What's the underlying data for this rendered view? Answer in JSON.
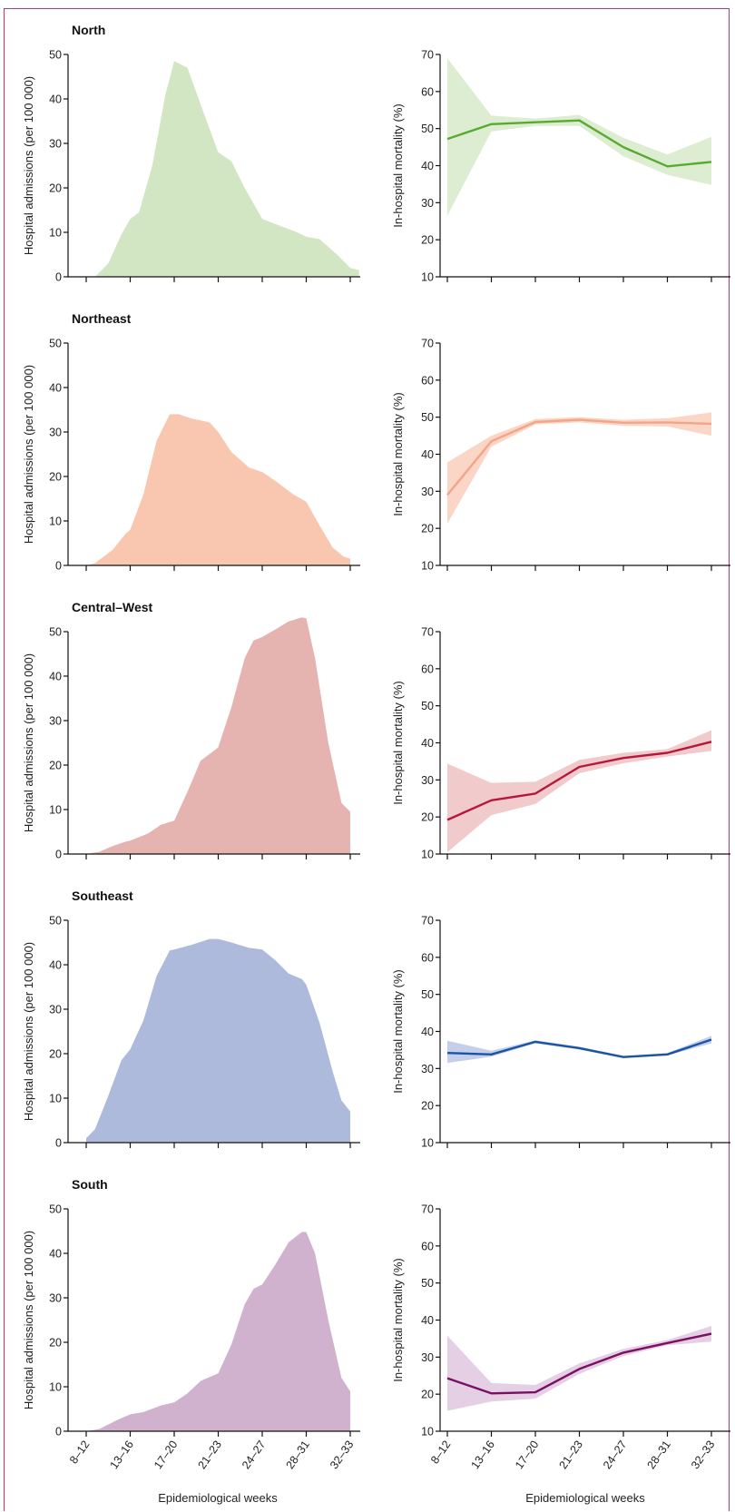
{
  "colors": {
    "north_area": "#d2e6c4",
    "north_line": "#5aaa32",
    "north_band": "#ddedd2",
    "northeast_area": "#f9c6af",
    "northeast_line": "#f2a588",
    "northeast_band": "#fbd6c6",
    "centralwest_area": "#e5b4b1",
    "centralwest_line": "#b5183d",
    "centralwest_band": "#f1cbcb",
    "southeast_area": "#adbadb",
    "southeast_line": "#1a55a4",
    "southeast_band": "#c5cfeb",
    "south_area": "#d0b2cf",
    "south_line": "#7b0f62",
    "south_band": "#e4cfe4",
    "frame": "#c2336f"
  },
  "x_axis_label": "Epidemiological weeks",
  "chart_data": [
    {
      "type": "area",
      "region": "North",
      "title": "North",
      "ylabel": "Hospital admissions (per 100 000)",
      "xlabel": "Epidemiological weeks",
      "ylim": [
        0,
        50
      ],
      "yticks": [
        0,
        10,
        20,
        30,
        40,
        50
      ],
      "categories": [
        "8–12",
        "13–16",
        "17–20",
        "21–23",
        "24–27",
        "28–31",
        "32–33"
      ],
      "x": [
        0.2,
        0.5,
        0.8,
        1.0,
        1.2,
        1.5,
        1.8,
        2.0,
        2.3,
        2.7,
        3.0,
        3.3,
        3.6,
        4.0,
        4.4,
        4.8,
        5.0,
        5.3,
        5.7,
        6.0,
        6.2
      ],
      "values": [
        0,
        3,
        9.5,
        13,
        14.5,
        25,
        41,
        48.5,
        47,
        36,
        28,
        26,
        20,
        13,
        11.5,
        10,
        9,
        8.5,
        5,
        2,
        1.5
      ]
    },
    {
      "type": "line",
      "region": "North",
      "ylabel": "In-hospital mortality (%)",
      "xlabel": "Epidemiological weeks",
      "ylim": [
        10,
        70
      ],
      "yticks": [
        10,
        20,
        30,
        40,
        50,
        60,
        70
      ],
      "categories": [
        "8–12",
        "13–16",
        "17–20",
        "21–23",
        "24–27",
        "28–31",
        "32–33"
      ],
      "values": [
        47.2,
        51.2,
        51.7,
        52.2,
        45.0,
        39.8,
        41.0
      ],
      "lower": [
        26.5,
        49.2,
        50.7,
        50.7,
        42.5,
        37.5,
        34.8
      ],
      "upper": [
        69.0,
        53.5,
        52.7,
        53.7,
        47.5,
        43.0,
        47.8
      ]
    },
    {
      "type": "area",
      "region": "Northeast",
      "title": "Northeast",
      "ylabel": "Hospital admissions (per 100 000)",
      "xlabel": "Epidemiological weeks",
      "ylim": [
        0,
        50
      ],
      "yticks": [
        0,
        10,
        20,
        30,
        40,
        50
      ],
      "categories": [
        "8–12",
        "13–16",
        "17–20",
        "21–23",
        "24–27",
        "28–31",
        "32–33"
      ],
      "x": [
        0,
        0.2,
        0.6,
        0.9,
        1.0,
        1.3,
        1.6,
        1.9,
        2.1,
        2.4,
        2.8,
        3.0,
        3.3,
        3.7,
        4.0,
        4.3,
        4.7,
        5.0,
        5.3,
        5.6,
        5.85,
        6.0
      ],
      "values": [
        0,
        0.5,
        3.5,
        7.2,
        8.0,
        16,
        28,
        34,
        34,
        33,
        32.2,
        30,
        25.5,
        22,
        21,
        19,
        16,
        14.3,
        9,
        4,
        2,
        1.5
      ]
    },
    {
      "type": "line",
      "region": "Northeast",
      "ylabel": "In-hospital mortality (%)",
      "xlabel": "Epidemiological weeks",
      "ylim": [
        10,
        70
      ],
      "yticks": [
        10,
        20,
        30,
        40,
        50,
        60,
        70
      ],
      "categories": [
        "8–12",
        "13–16",
        "17–20",
        "21–23",
        "24–27",
        "28–31",
        "32–33"
      ],
      "values": [
        29.0,
        43.5,
        48.7,
        49.3,
        48.5,
        48.6,
        48.2
      ],
      "lower": [
        21.3,
        42.0,
        48.0,
        48.6,
        47.7,
        47.5,
        45.0
      ],
      "upper": [
        37.8,
        45.0,
        49.5,
        50.0,
        49.3,
        49.7,
        51.3
      ]
    },
    {
      "type": "area",
      "region": "Central–West",
      "title": "Central–West",
      "ylabel": "Hospital admissions (per 100 000)",
      "xlabel": "Epidemiological weeks",
      "ylim": [
        0,
        50
      ],
      "yticks": [
        0,
        10,
        20,
        30,
        40,
        50
      ],
      "categories": [
        "8–12",
        "13–16",
        "17–20",
        "21–23",
        "24–27",
        "28–31",
        "32–33"
      ],
      "x": [
        0,
        0.3,
        0.6,
        0.9,
        1.0,
        1.4,
        1.7,
        2.0,
        2.3,
        2.6,
        2.9,
        3.0,
        3.3,
        3.6,
        3.8,
        4.0,
        4.3,
        4.6,
        4.9,
        5.0,
        5.2,
        5.5,
        5.8,
        6.0
      ],
      "values": [
        0,
        0.5,
        1.8,
        2.8,
        3.0,
        4.6,
        6.6,
        7.5,
        14,
        21,
        23.2,
        24,
        33,
        44,
        48,
        48.8,
        50.5,
        52.3,
        53.2,
        53,
        44,
        25,
        11.5,
        9.5
      ]
    },
    {
      "type": "line",
      "region": "Central–West",
      "ylabel": "In-hospital mortality (%)",
      "xlabel": "Epidemiological weeks",
      "ylim": [
        10,
        70
      ],
      "yticks": [
        10,
        20,
        30,
        40,
        50,
        60,
        70
      ],
      "categories": [
        "8–12",
        "13–16",
        "17–20",
        "21–23",
        "24–27",
        "28–31",
        "32–33"
      ],
      "values": [
        19.2,
        24.5,
        26.3,
        33.5,
        35.9,
        37.3,
        40.3
      ],
      "lower": [
        10.5,
        20.5,
        23.5,
        31.8,
        34.5,
        36.3,
        37.8
      ],
      "upper": [
        34.4,
        29.2,
        29.5,
        35.4,
        37.3,
        38.3,
        43.4
      ]
    },
    {
      "type": "area",
      "region": "Southeast",
      "title": "Southeast",
      "ylabel": "Hospital admissions (per 100 000)",
      "xlabel": "Epidemiological weeks",
      "ylim": [
        0,
        50
      ],
      "yticks": [
        0,
        10,
        20,
        30,
        40,
        50
      ],
      "categories": [
        "8–12",
        "13–16",
        "17–20",
        "21–23",
        "24–27",
        "28–31",
        "32–33"
      ],
      "x": [
        0,
        0.2,
        0.5,
        0.8,
        1.0,
        1.3,
        1.6,
        1.9,
        2.0,
        2.4,
        2.8,
        3.0,
        3.3,
        3.7,
        4.0,
        4.3,
        4.6,
        4.9,
        5.0,
        5.3,
        5.6,
        5.8,
        6.0
      ],
      "values": [
        1,
        3,
        10.5,
        18.5,
        21,
        27.5,
        37.5,
        43.2,
        43.4,
        44.5,
        45.8,
        45.8,
        45.0,
        43.8,
        43.4,
        41,
        38,
        36.8,
        35.5,
        27,
        16,
        9.5,
        7
      ]
    },
    {
      "type": "line",
      "region": "Southeast",
      "ylabel": "In-hospital mortality (%)",
      "xlabel": "Epidemiological weeks",
      "ylim": [
        10,
        70
      ],
      "yticks": [
        10,
        20,
        30,
        40,
        50,
        60,
        70
      ],
      "categories": [
        "8–12",
        "13–16",
        "17–20",
        "21–23",
        "24–27",
        "28–31",
        "32–33"
      ],
      "values": [
        34.2,
        33.8,
        37.2,
        35.5,
        33.1,
        33.8,
        37.8
      ],
      "lower": [
        31.5,
        33.2,
        36.8,
        35.1,
        32.8,
        33.5,
        36.8
      ],
      "upper": [
        37.5,
        34.8,
        37.6,
        35.9,
        33.4,
        34.2,
        38.8
      ]
    },
    {
      "type": "area",
      "region": "South",
      "title": "South",
      "ylabel": "Hospital admissions (per 100 000)",
      "xlabel": "Epidemiological weeks",
      "ylim": [
        0,
        50
      ],
      "yticks": [
        0,
        10,
        20,
        30,
        40,
        50
      ],
      "categories": [
        "8–12",
        "13–16",
        "17–20",
        "21–23",
        "24–27",
        "28–31",
        "32–33"
      ],
      "x": [
        0,
        0.3,
        0.7,
        1.0,
        1.3,
        1.7,
        2.0,
        2.3,
        2.6,
        2.9,
        3.0,
        3.3,
        3.6,
        3.8,
        4.0,
        4.3,
        4.6,
        4.9,
        5.0,
        5.2,
        5.5,
        5.8,
        6.0
      ],
      "values": [
        0,
        0.5,
        2.5,
        3.8,
        4.3,
        5.8,
        6.5,
        8.5,
        11.3,
        12.6,
        13,
        19.5,
        28.5,
        32,
        33,
        37.5,
        42.5,
        44.8,
        44.8,
        40,
        25,
        12,
        9
      ]
    },
    {
      "type": "line",
      "region": "South",
      "ylabel": "In-hospital mortality (%)",
      "xlabel": "Epidemiological weeks",
      "ylim": [
        10,
        70
      ],
      "yticks": [
        10,
        20,
        30,
        40,
        50,
        60,
        70
      ],
      "categories": [
        "8–12",
        "13–16",
        "17–20",
        "21–23",
        "24–27",
        "28–31",
        "32–33"
      ],
      "values": [
        24.3,
        20.2,
        20.5,
        26.8,
        31.2,
        33.8,
        36.3
      ],
      "lower": [
        15.5,
        18.0,
        18.8,
        25.5,
        30.3,
        33.2,
        34.2
      ],
      "upper": [
        35.8,
        23.0,
        22.5,
        28.3,
        32.2,
        34.6,
        38.4
      ]
    }
  ]
}
